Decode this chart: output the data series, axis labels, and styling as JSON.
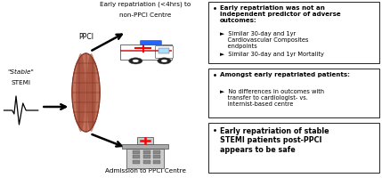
{
  "bg_color": "#ffffff",
  "left_label_line1": "\"Stable\"",
  "left_label_line2": "STEMI",
  "ppci_label": "PPCI",
  "top_arrow_label_line1": "Early repatriation (<4hrs) to",
  "top_arrow_label_line2": "non-PPCI Centre",
  "bottom_arrow_label": "Admission to PPCI Centre",
  "box1_bullet": "Early repatriation was not an\nindependent predictor of adverse\noutcomes:",
  "box1_sub1": "Similar 30-day and 1yr\nCardiovascular Composites\nendpoints",
  "box1_sub2": "Similar 30-day and 1yr Mortality",
  "box2_bullet": "Amongst early repatriated patients:",
  "box2_sub1": "No differences in outcomes with\ntransfer to cardiologist- vs.\ninternist-based centre",
  "box3_bullet": "Early repatriation of stable\nSTEMI patients post-PPCI\nappears to be safe",
  "font_size": 5.2,
  "font_size_bold": 6.0,
  "font_size_sub": 4.8,
  "stent_color": "#c0725a",
  "stent_edge": "#8b3a2a",
  "stent_grid": "#7a2a1a"
}
